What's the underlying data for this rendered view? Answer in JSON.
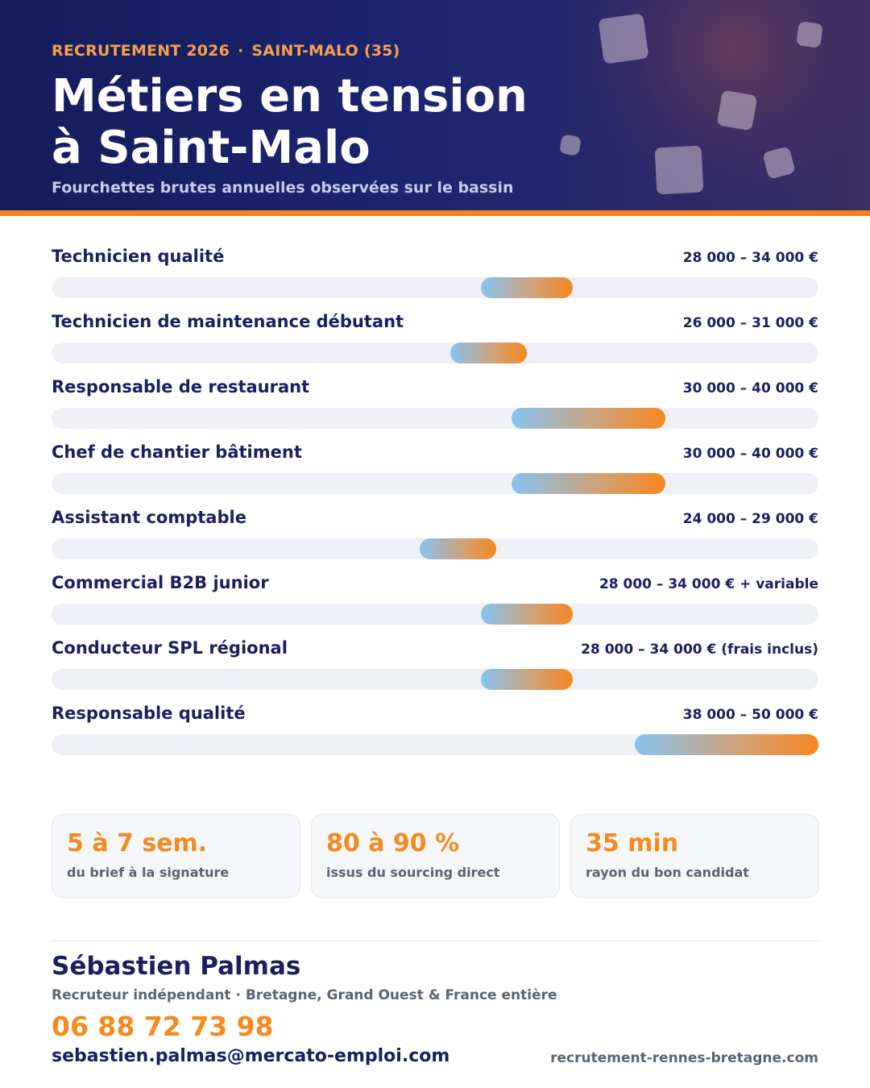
{
  "header": {
    "kicker_left": "RECRUTEMENT 2026",
    "kicker_sep": "·",
    "kicker_right": "SAINT-MALO (35)",
    "title_line1": "Métiers en tension",
    "title_line2": "à Saint-Malo",
    "subtitle": "Fourchettes brutes annuelles observées sur le bassin"
  },
  "colors": {
    "navy": "#1b1f5e",
    "orange": "#f58a1f",
    "bar_start": "#86c3f1",
    "bar_end": "#f5861e",
    "track": "#eef0f6"
  },
  "chart_data": {
    "type": "bar",
    "orientation": "horizontal-range",
    "unit": "€",
    "xlim": [
      0,
      50000
    ],
    "grid": false,
    "categories": [
      "Technicien qualité",
      "Technicien de maintenance débutant",
      "Responsable de restaurant",
      "Chef de chantier bâtiment",
      "Assistant comptable",
      "Commercial B2B junior",
      "Conducteur SPL régional",
      "Responsable qualité"
    ],
    "ranges": [
      [
        28000,
        34000
      ],
      [
        26000,
        31000
      ],
      [
        30000,
        40000
      ],
      [
        30000,
        40000
      ],
      [
        24000,
        29000
      ],
      [
        28000,
        34000
      ],
      [
        28000,
        34000
      ],
      [
        38000,
        50000
      ]
    ],
    "labels": [
      "28 000 – 34 000 €",
      "26 000 – 31 000 €",
      "30 000 – 40 000 €",
      "30 000 – 40 000 €",
      "24 000 – 29 000 €",
      "28 000 – 34 000 € + variable",
      "28 000 – 34 000 € (frais inclus)",
      "38 000 – 50 000 €"
    ]
  },
  "stats": [
    {
      "value": "5 à 7 sem.",
      "label": "du brief à la signature"
    },
    {
      "value": "80 à 90 %",
      "label": "issus du sourcing direct"
    },
    {
      "value": "35 min",
      "label": "rayon du bon candidat"
    }
  ],
  "contact": {
    "name": "Sébastien Palmas",
    "role": "Recruteur indépendant · Bretagne, Grand Ouest & France entière",
    "phone": "06 88 72 73 98",
    "email": "sebastien.palmas@mercato-emploi.com",
    "website": "recrutement-rennes-bretagne.com"
  }
}
